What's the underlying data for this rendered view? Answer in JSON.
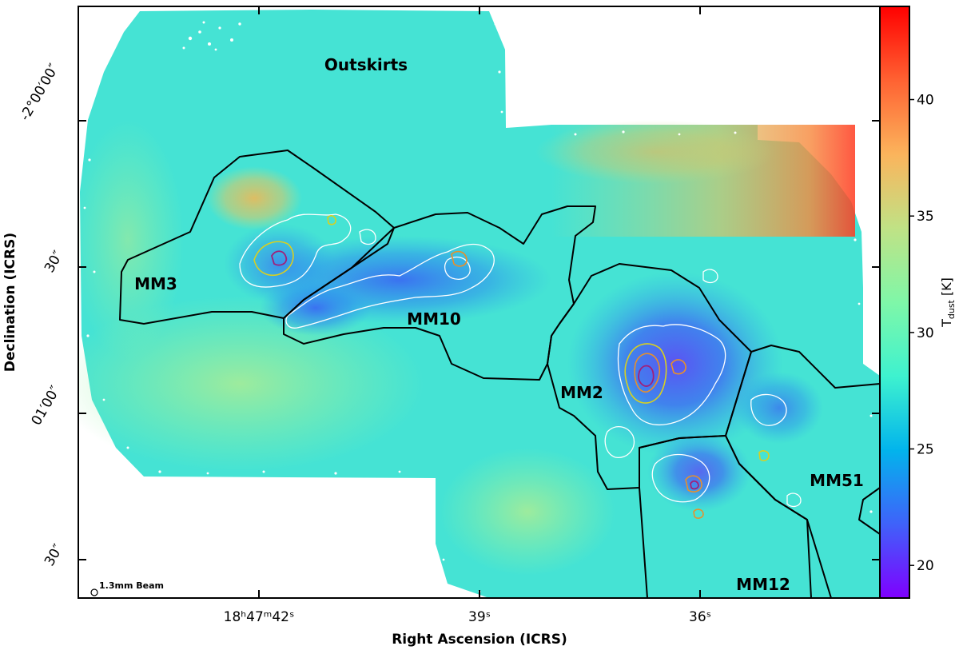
{
  "chart_data": {
    "type": "heatmap",
    "title": "",
    "xlabel": "Right Ascension (ICRS)",
    "ylabel": "Declination (ICRS)",
    "x_ticks": [
      {
        "label": "18ʰ47ᵐ42ˢ"
      },
      {
        "label": "39ˢ"
      },
      {
        "label": "36ˢ"
      }
    ],
    "y_ticks": [
      {
        "label": "-2°00′00″"
      },
      {
        "label": "30″"
      },
      {
        "label": "01′00″"
      },
      {
        "label": "30″"
      }
    ],
    "colorbar": {
      "label": "T",
      "label_sub": "dust",
      "label_unit": " [K]",
      "range": [
        18.6,
        44.0
      ],
      "ticks": [
        20,
        25,
        30,
        35,
        40
      ],
      "colormap": "rainbow",
      "colors": [
        "#7f00ff",
        "#3f62fa",
        "#02b4ec",
        "#3ef2cf",
        "#7ff7a8",
        "#c0e285",
        "#fbb45c",
        "#ff6232",
        "#ff0000"
      ]
    },
    "regions": [
      {
        "name": "Outskirts"
      },
      {
        "name": "MM3"
      },
      {
        "name": "MM10"
      },
      {
        "name": "MM2"
      },
      {
        "name": "MM51"
      },
      {
        "name": "MM12"
      }
    ],
    "beam_label": "1.3mm Beam"
  }
}
